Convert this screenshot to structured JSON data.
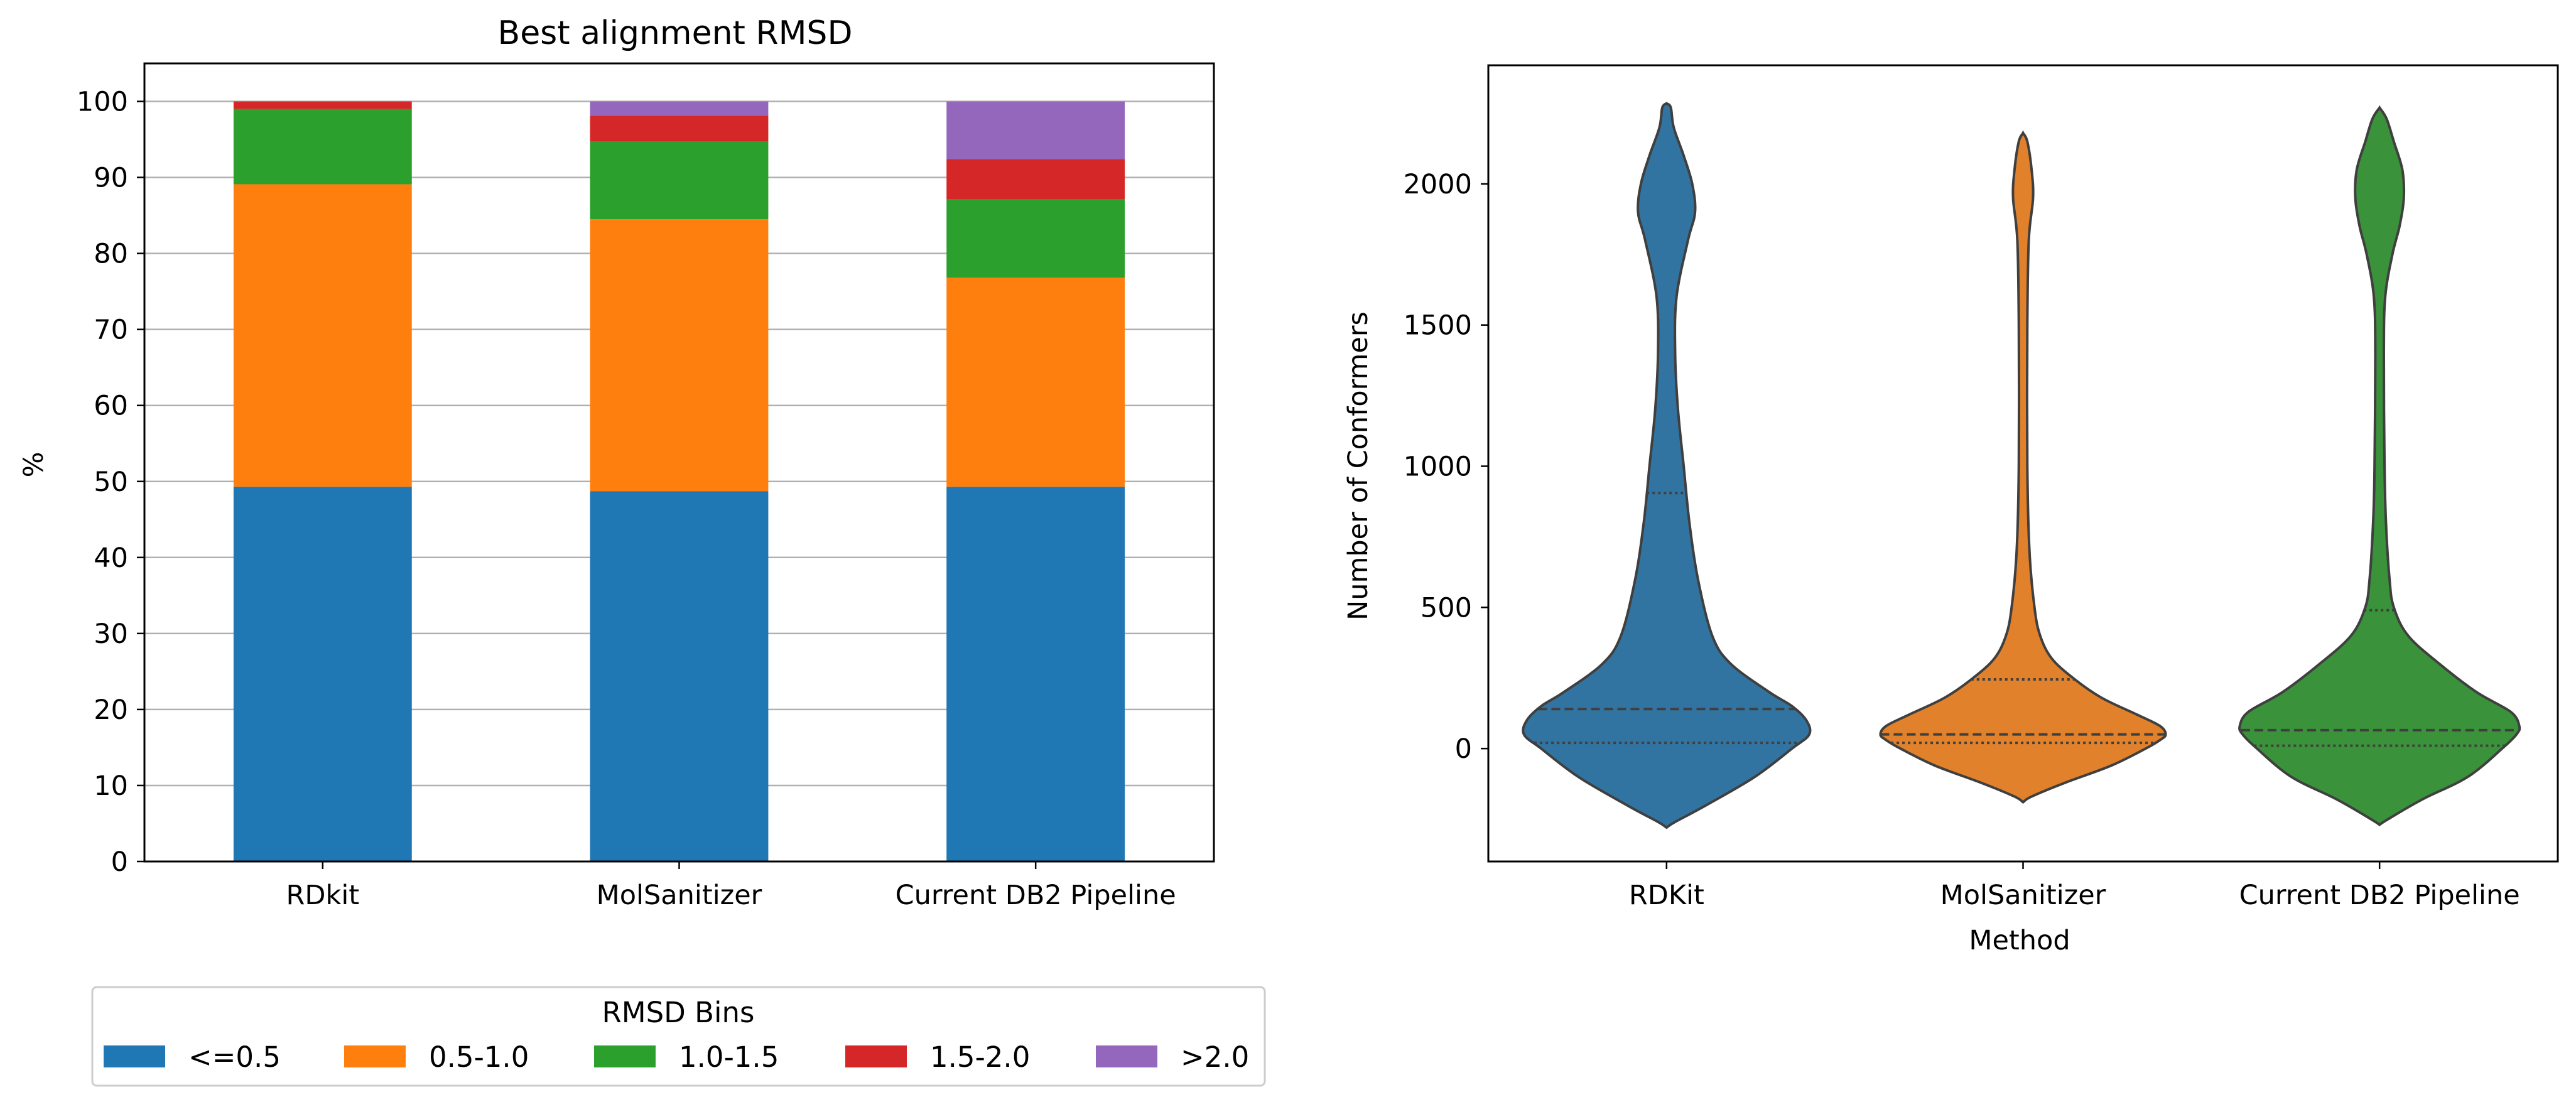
{
  "chart_data": [
    {
      "type": "bar",
      "stacked": true,
      "title": "Best alignment RMSD",
      "xlabel": "",
      "ylabel": "%",
      "ylim": [
        0,
        105
      ],
      "yticks": [
        0,
        10,
        20,
        30,
        40,
        50,
        60,
        70,
        80,
        90,
        100
      ],
      "grid": "horizontal",
      "categories": [
        "RDkit",
        "MolSanitizer",
        "Current DB2 Pipeline"
      ],
      "legend": {
        "title": "RMSD Bins",
        "placement": "bottom"
      },
      "series": [
        {
          "name": "<=0.5",
          "color": "#1f77b4",
          "values": [
            49.3,
            48.7,
            49.3
          ]
        },
        {
          "name": "0.5-1.0",
          "color": "#ff7f0e",
          "values": [
            39.8,
            35.8,
            27.5
          ]
        },
        {
          "name": "1.0-1.5",
          "color": "#2ca02c",
          "values": [
            9.9,
            10.2,
            10.3
          ]
        },
        {
          "name": "1.5-2.0",
          "color": "#d62728",
          "values": [
            1.0,
            3.4,
            5.3
          ]
        },
        {
          "name": ">2.0",
          "color": "#9467bd",
          "values": [
            0.0,
            1.9,
            7.6
          ]
        }
      ]
    },
    {
      "type": "violin",
      "title": "",
      "xlabel": "Method",
      "ylabel": "Number of Conformers",
      "ylim": [
        -400,
        2420
      ],
      "yticks": [
        0,
        500,
        1000,
        1500,
        2000
      ],
      "categories": [
        "RDKit",
        "MolSanitizer",
        "Current DB2 Pipeline"
      ],
      "series": [
        {
          "name": "RDKit",
          "color": "#3274a1",
          "quartiles": [
            20,
            140,
            905
          ],
          "profile": [
            [
              -280,
              0
            ],
            [
              -260,
              0.06
            ],
            [
              -200,
              0.28
            ],
            [
              -100,
              0.62
            ],
            [
              0,
              0.88
            ],
            [
              50,
              1.0
            ],
            [
              100,
              0.98
            ],
            [
              150,
              0.88
            ],
            [
              200,
              0.72
            ],
            [
              300,
              0.45
            ],
            [
              400,
              0.32
            ],
            [
              600,
              0.22
            ],
            [
              800,
              0.16
            ],
            [
              1000,
              0.12
            ],
            [
              1200,
              0.08
            ],
            [
              1400,
              0.06
            ],
            [
              1600,
              0.07
            ],
            [
              1800,
              0.15
            ],
            [
              1900,
              0.2
            ],
            [
              2000,
              0.18
            ],
            [
              2100,
              0.12
            ],
            [
              2200,
              0.05
            ],
            [
              2270,
              0.03
            ],
            [
              2285,
              0
            ]
          ]
        },
        {
          "name": "MolSanitizer",
          "color": "#e1812c",
          "quartiles": [
            20,
            50,
            245
          ],
          "profile": [
            [
              -190,
              0
            ],
            [
              -170,
              0.06
            ],
            [
              -120,
              0.3
            ],
            [
              -60,
              0.62
            ],
            [
              0,
              0.86
            ],
            [
              30,
              0.96
            ],
            [
              50,
              1.0
            ],
            [
              80,
              0.96
            ],
            [
              120,
              0.8
            ],
            [
              180,
              0.55
            ],
            [
              250,
              0.35
            ],
            [
              320,
              0.2
            ],
            [
              400,
              0.12
            ],
            [
              500,
              0.08
            ],
            [
              700,
              0.045
            ],
            [
              1000,
              0.03
            ],
            [
              1500,
              0.03
            ],
            [
              1800,
              0.04
            ],
            [
              1950,
              0.07
            ],
            [
              2050,
              0.06
            ],
            [
              2150,
              0.03
            ],
            [
              2180,
              0
            ]
          ]
        },
        {
          "name": "Current DB2 Pipeline",
          "color": "#3a923a",
          "quartiles": [
            10,
            65,
            490
          ],
          "profile": [
            [
              -270,
              0
            ],
            [
              -250,
              0.06
            ],
            [
              -180,
              0.3
            ],
            [
              -100,
              0.62
            ],
            [
              0,
              0.86
            ],
            [
              50,
              0.96
            ],
            [
              80,
              0.98
            ],
            [
              130,
              0.92
            ],
            [
              200,
              0.68
            ],
            [
              300,
              0.42
            ],
            [
              400,
              0.2
            ],
            [
              500,
              0.1
            ],
            [
              600,
              0.07
            ],
            [
              800,
              0.045
            ],
            [
              1000,
              0.035
            ],
            [
              1400,
              0.03
            ],
            [
              1600,
              0.04
            ],
            [
              1750,
              0.09
            ],
            [
              1850,
              0.14
            ],
            [
              1950,
              0.17
            ],
            [
              2050,
              0.16
            ],
            [
              2150,
              0.1
            ],
            [
              2230,
              0.05
            ],
            [
              2270,
              0
            ]
          ]
        }
      ]
    }
  ]
}
